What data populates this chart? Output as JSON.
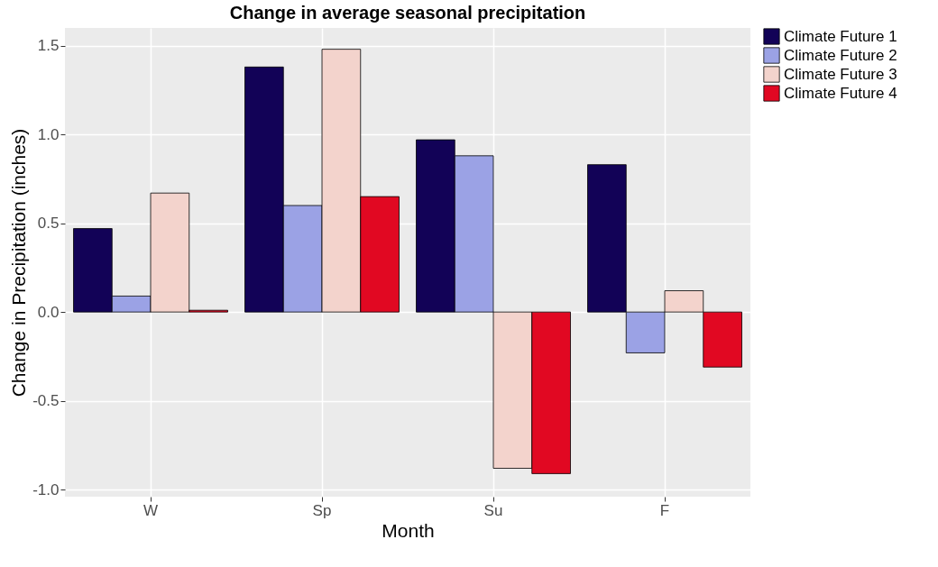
{
  "chart_data": {
    "type": "bar",
    "title": "Change in average seasonal precipitation",
    "xlabel": "Month",
    "ylabel": "Change in Precipitation (inches)",
    "categories": [
      "W",
      "Sp",
      "Su",
      "F"
    ],
    "series": [
      {
        "name": "Climate Future 1",
        "color": "#120257",
        "values": [
          0.47,
          1.38,
          0.97,
          0.83
        ]
      },
      {
        "name": "Climate Future 2",
        "color": "#9ba2e5",
        "values": [
          0.09,
          0.6,
          0.88,
          -0.23
        ]
      },
      {
        "name": "Climate Future 3",
        "color": "#f3d3cc",
        "values": [
          0.67,
          1.48,
          -0.88,
          0.12
        ]
      },
      {
        "name": "Climate Future 4",
        "color": "#e10822",
        "values": [
          0.01,
          0.65,
          -0.91,
          -0.31
        ]
      }
    ],
    "ylim": [
      -1.04,
      1.6
    ],
    "yticks": [
      {
        "value": -1,
        "label": "-1.0"
      },
      {
        "value": -0.5,
        "label": "-0.5"
      },
      {
        "value": 0,
        "label": "0.0"
      },
      {
        "value": 0.5,
        "label": "0.5"
      },
      {
        "value": 1,
        "label": "1.0"
      },
      {
        "value": 1.5,
        "label": "1.5"
      }
    ],
    "grid": true,
    "legend": "right"
  }
}
